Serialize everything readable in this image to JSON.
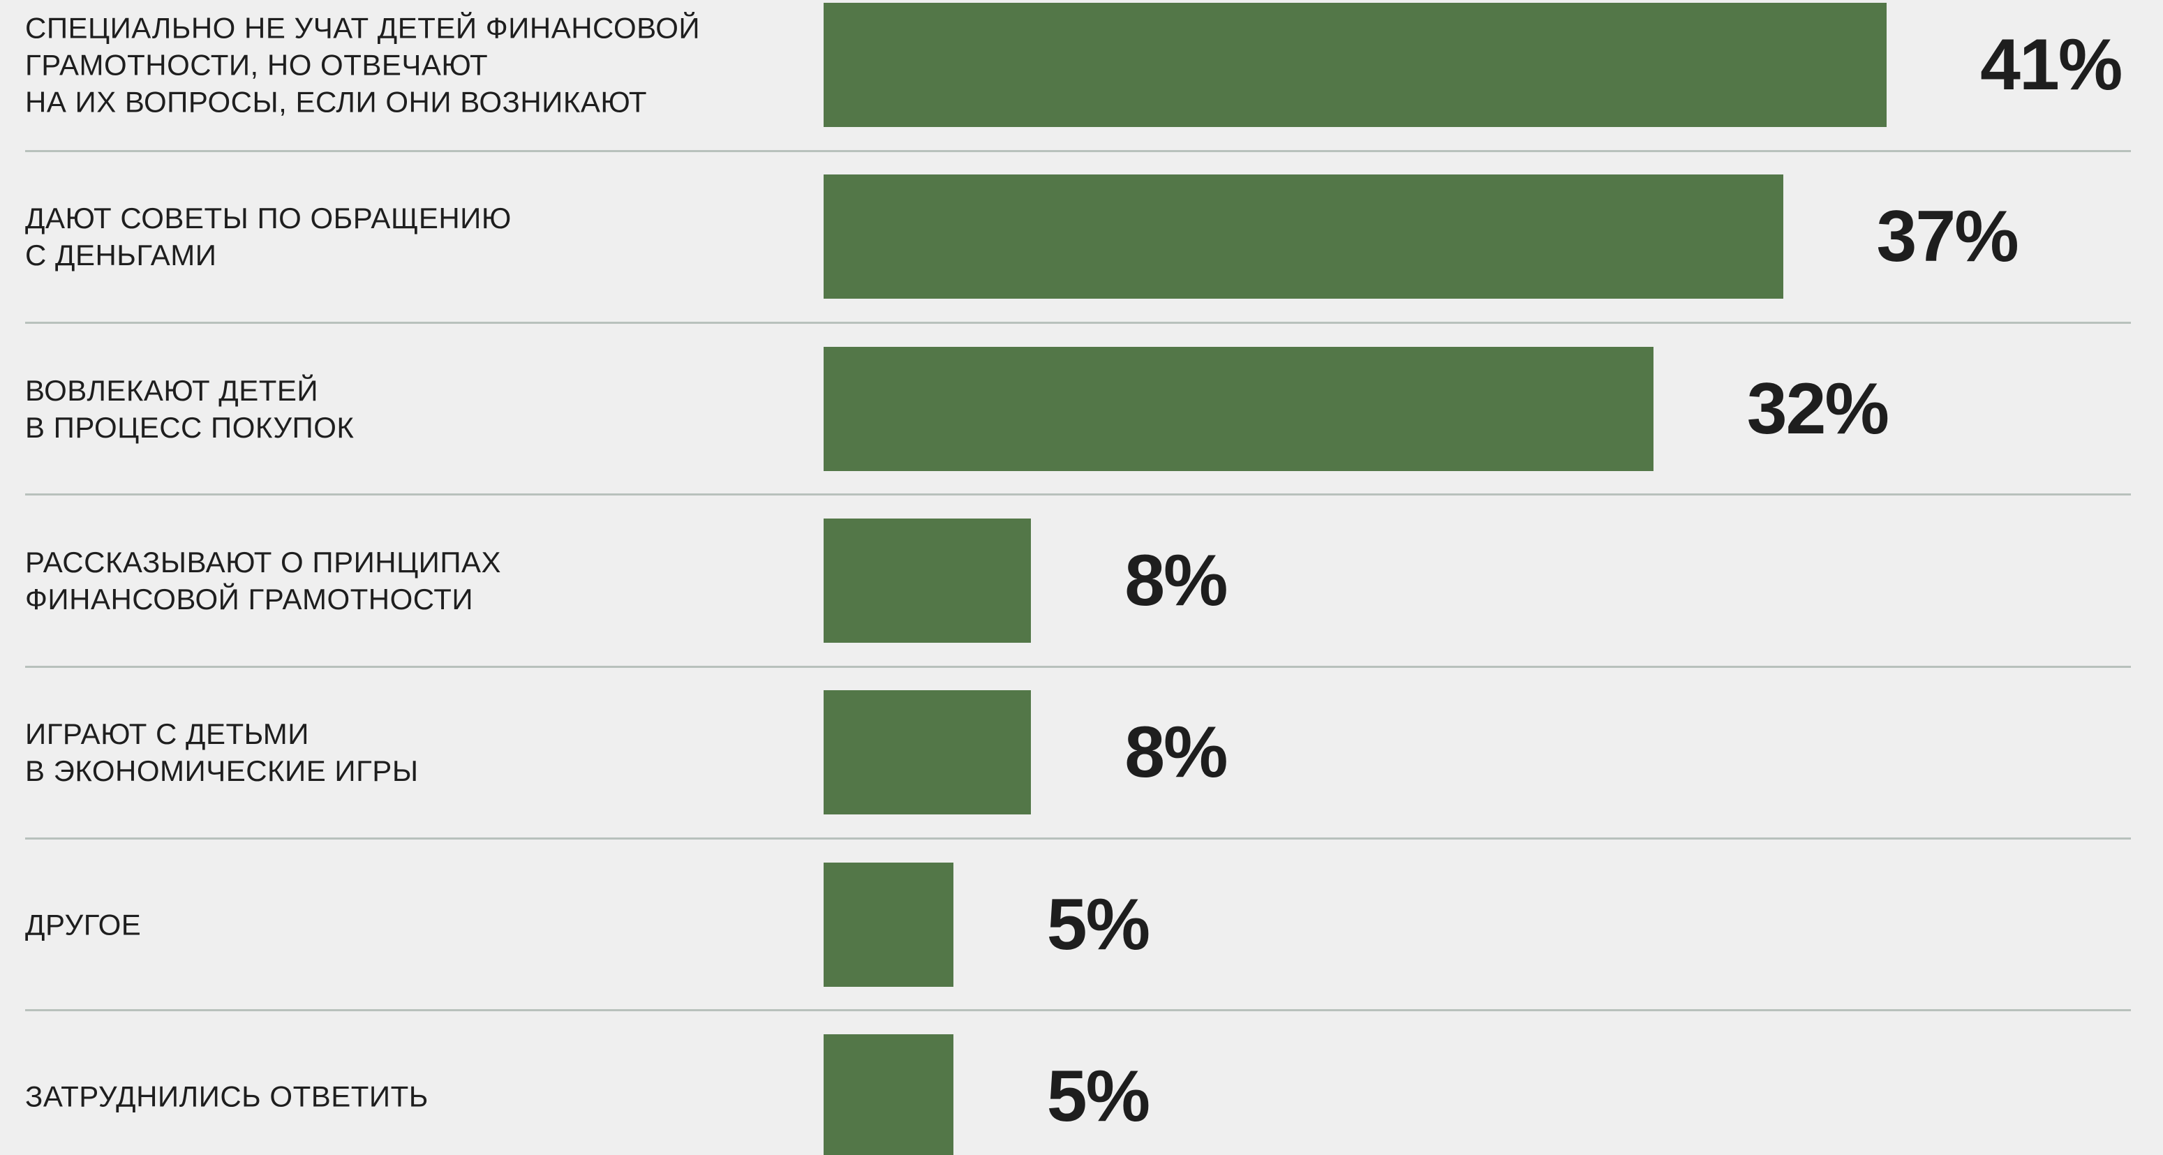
{
  "colors": {
    "background": "#efefef",
    "bar": "#537748",
    "text": "#1e1e1e",
    "separator": "#b8c1bc"
  },
  "chart_data": {
    "type": "bar",
    "categories": [
      "СПЕЦИАЛЬНО НЕ УЧАТ ДЕТЕЙ ФИНАНСОВОЙ\nГРАМОТНОСТИ, НО ОТВЕЧАЮТ\nНА ИХ ВОПРОСЫ, ЕСЛИ ОНИ ВОЗНИКАЮТ",
      "ДАЮТ СОВЕТЫ ПО ОБРАЩЕНИЮ\nС ДЕНЬГАМИ",
      "ВОВЛЕКАЮТ ДЕТЕЙ\nВ ПРОЦЕСС ПОКУПОК",
      "РАССКАЗЫВАЮТ О ПРИНЦИПАХ\nФИНАНСОВОЙ ГРАМОТНОСТИ",
      "ИГРАЮТ С ДЕТЬМИ\nВ ЭКОНОМИЧЕСКИЕ ИГРЫ",
      "ДРУГОЕ",
      "ЗАТРУДНИЛИСЬ ОТВЕТИТЬ"
    ],
    "values": [
      41,
      37,
      32,
      8,
      8,
      5,
      5
    ],
    "value_labels": [
      "41%",
      "37%",
      "32%",
      "8%",
      "8%",
      "5%",
      "5%"
    ],
    "grid": false
  }
}
